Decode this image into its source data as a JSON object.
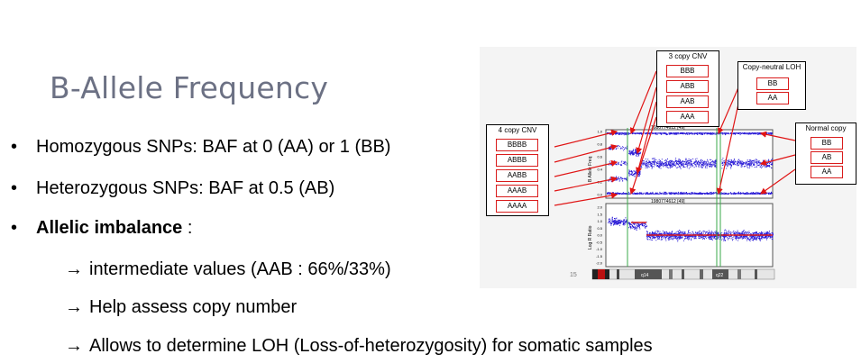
{
  "slide": {
    "title": "B-Allele Frequency",
    "bullet_dot": "•",
    "arrow": "→",
    "bullets": [
      {
        "text": "Homozygous SNPs: BAF at 0 (AA) or 1 (BB)"
      },
      {
        "text": "Heterozygous SNPs: BAF at 0.5 (AB)"
      },
      {
        "bold": "Allelic imbalance",
        "rest": " :"
      }
    ],
    "subbullets": [
      "intermediate values (AAB : 66%/33%)",
      "Help assess copy number",
      "Allows to determine LOH (Loss-of-heterozygosity) for somatic samples"
    ]
  },
  "figure": {
    "boxes": {
      "four_copy": {
        "label": "4 copy CNV",
        "genotypes": [
          "BBBB",
          "ABBB",
          "AABB",
          "AAAB",
          "AAAA"
        ]
      },
      "three_copy": {
        "label": "3 copy CNV",
        "genotypes": [
          "BBB",
          "ABB",
          "AAB",
          "AAA"
        ]
      },
      "copy_neutral": {
        "label": "Copy-neutral LOH",
        "genotypes": [
          "BB",
          "AA"
        ]
      },
      "normal": {
        "label": "Normal copy",
        "genotypes": [
          "BB",
          "AB",
          "AA"
        ]
      }
    },
    "baf_panel": {
      "header": "1980774612 [49]",
      "ylabel": "B Allele Freq",
      "yticks": [
        "1.0",
        "0.8",
        "0.6",
        "0.4",
        "0.2",
        "0.0"
      ]
    },
    "lrr_panel": {
      "header": "1980774612 [49]",
      "ylabel": "Log R Ratio",
      "yticks": [
        "2.0",
        "1.5",
        "1.0",
        "0.5",
        "0.0",
        "-0.5",
        "-1.0",
        "-1.5",
        "-2.0"
      ]
    },
    "chromosome": {
      "number": "15",
      "bands": [
        "q14",
        "q22"
      ]
    },
    "colors": {
      "points": "#2a1bd6",
      "arrows": "#e01515",
      "segment": "#d9191c",
      "title": "#6c7184"
    }
  }
}
